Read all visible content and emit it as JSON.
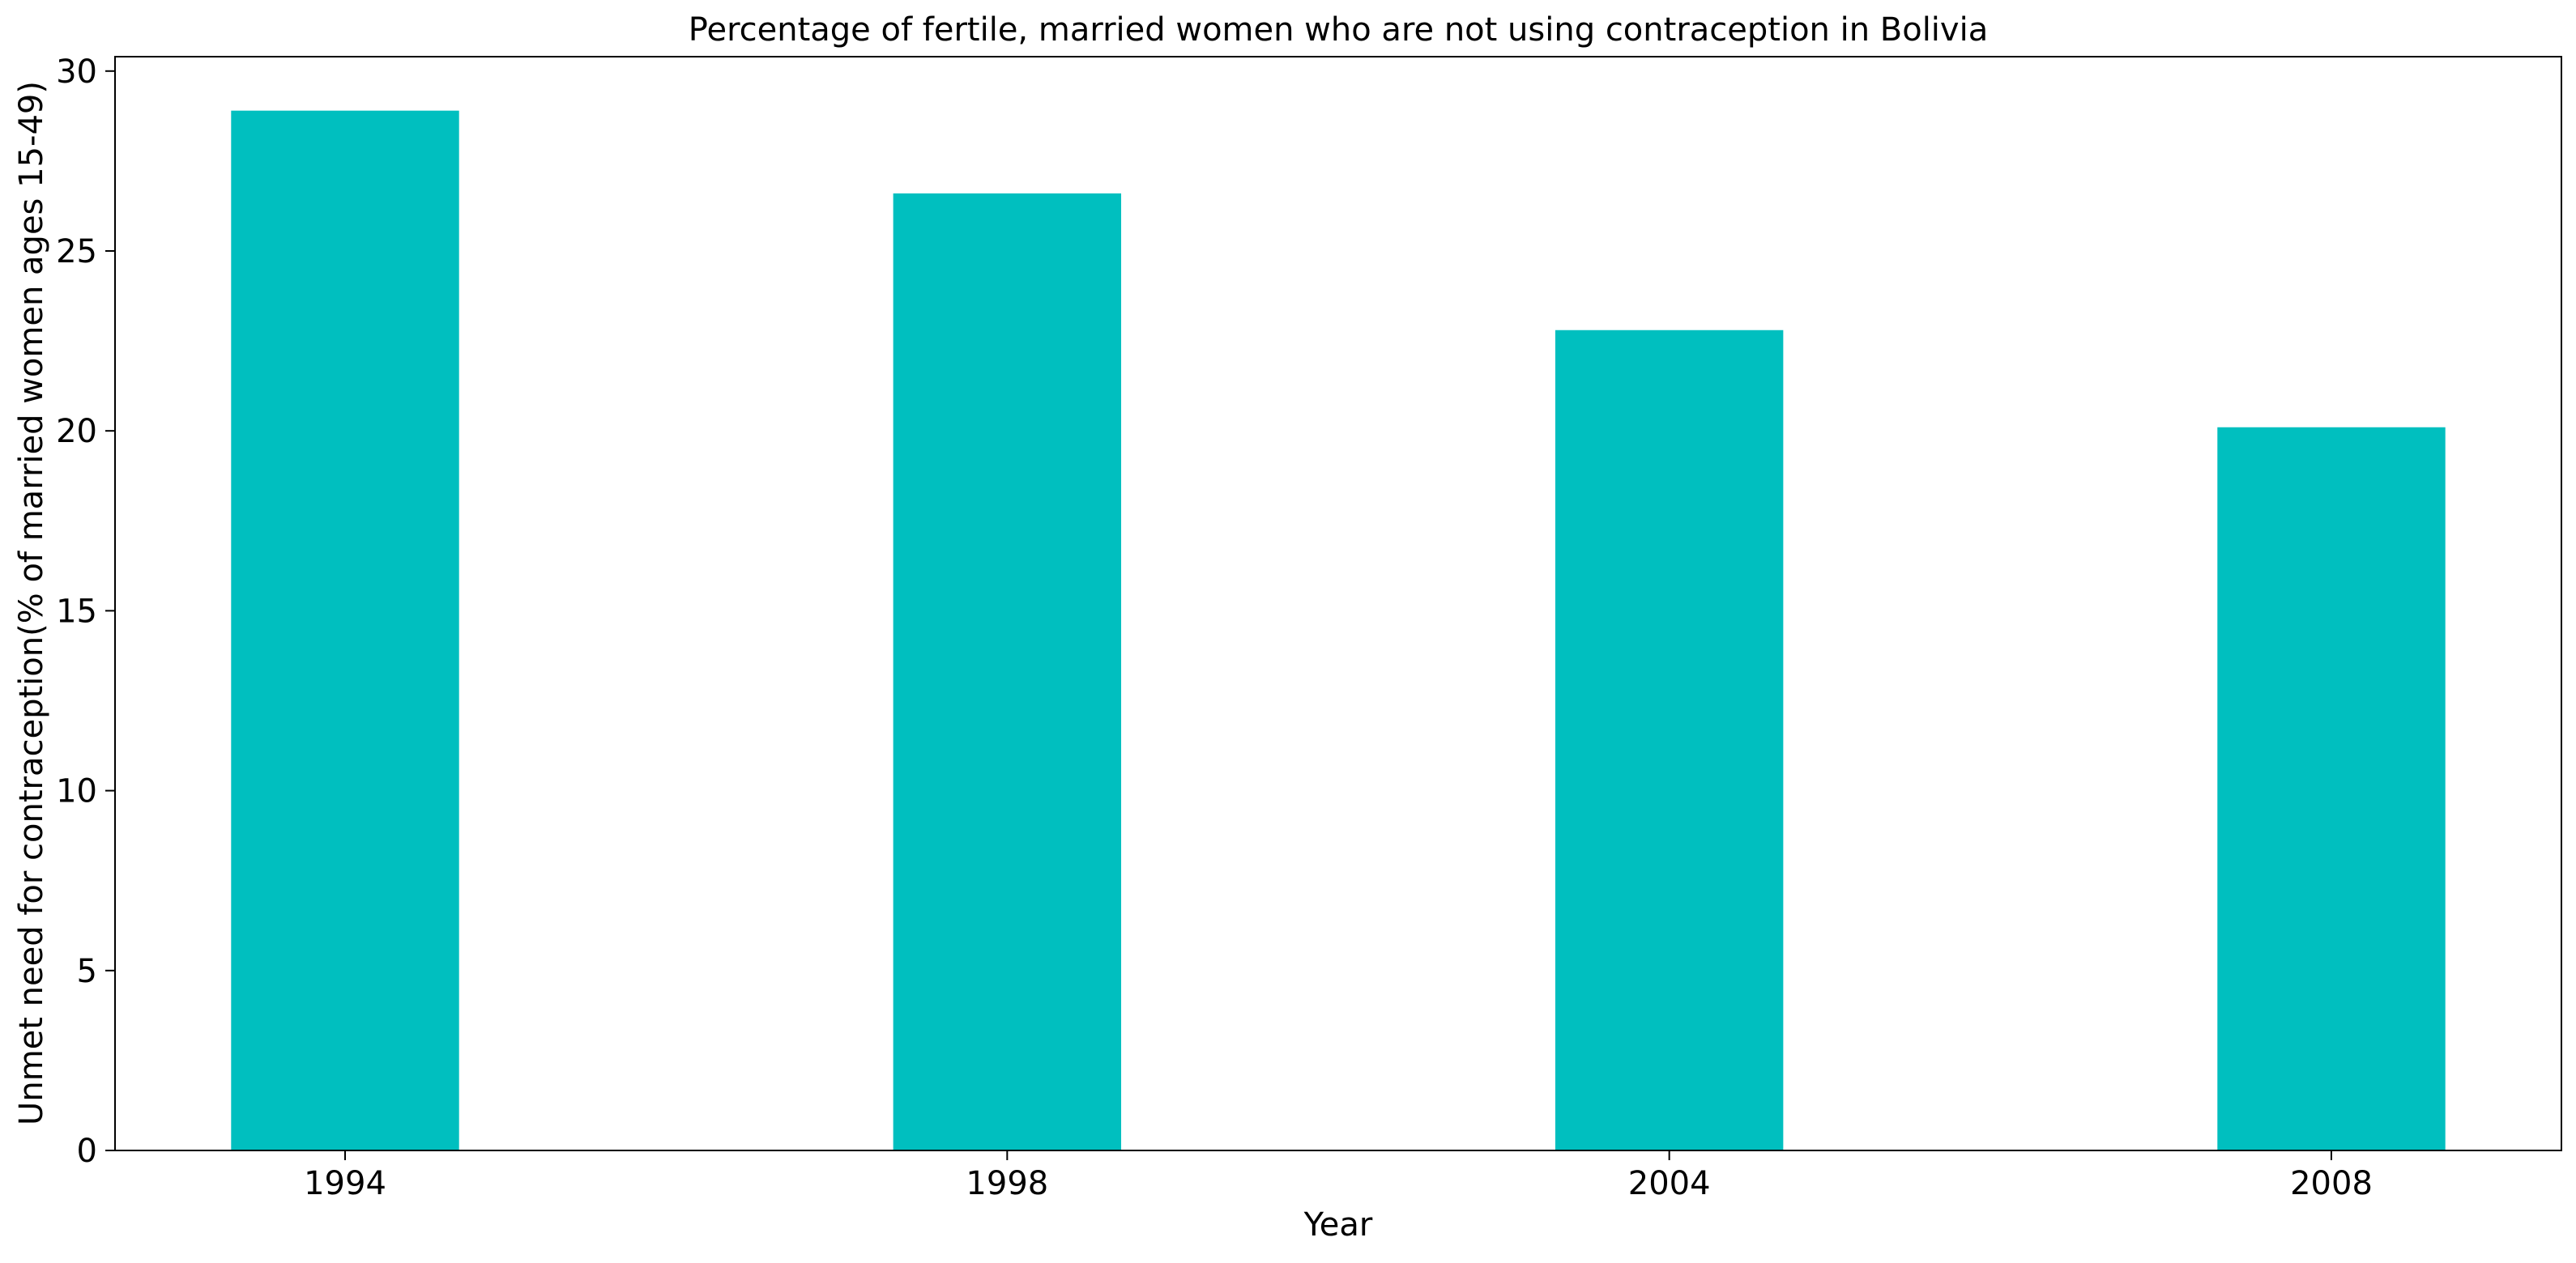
{
  "chart_data": {
    "type": "bar",
    "title": "Percentage of fertile, married women who are not using contraception in Bolivia",
    "xlabel": "Year",
    "ylabel": "Unmet need for contraception(% of married women ages 15-49)",
    "categories": [
      "1994",
      "1998",
      "2004",
      "2008"
    ],
    "values": [
      28.9,
      26.6,
      22.8,
      20.1
    ],
    "ylim": [
      0,
      30.4
    ],
    "yticks": [
      0,
      5,
      10,
      15,
      20,
      25,
      30
    ],
    "bar_color": "#00bfbf",
    "grid": false,
    "legend": "none"
  }
}
